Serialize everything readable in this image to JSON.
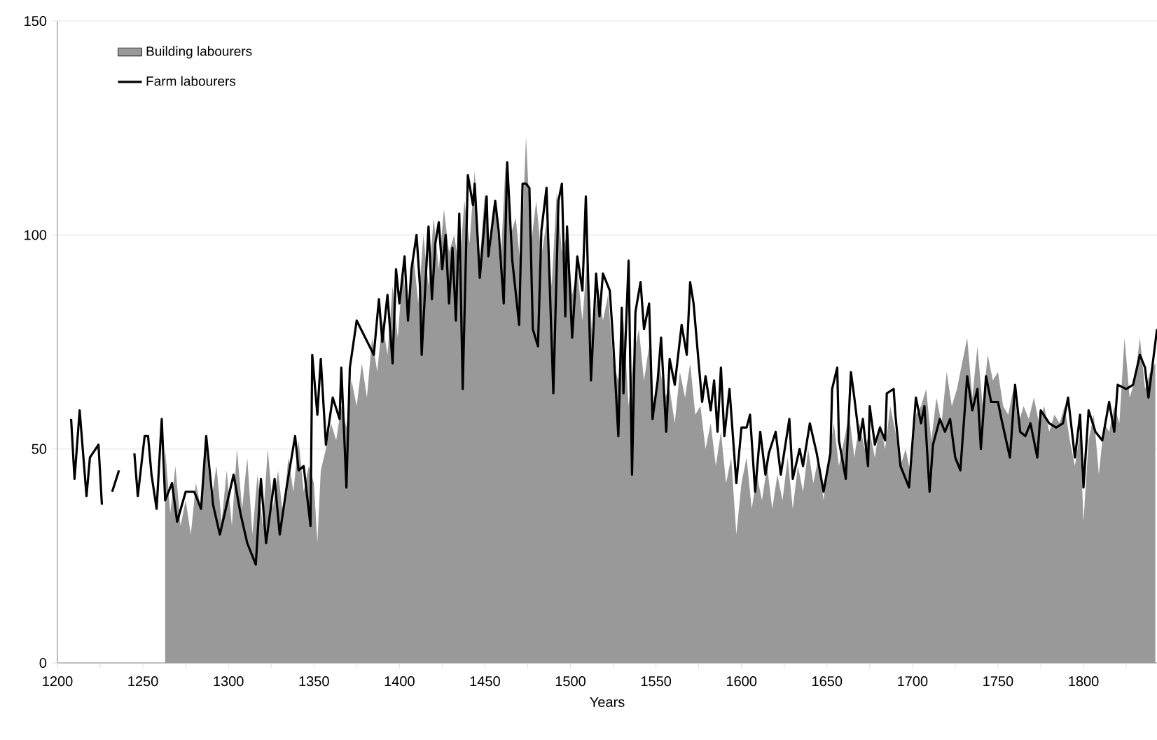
{
  "chart_data": {
    "type": "area",
    "xlabel": "Years",
    "xlim": [
      1200,
      1843
    ],
    "ylim": [
      0,
      150
    ],
    "xticks": [
      1200,
      {
        "value": 1225,
        "label": null
      },
      1250,
      {
        "value": 1275,
        "label": null
      },
      1300,
      {
        "value": 1325,
        "label": null
      },
      1350,
      {
        "value": 1375,
        "label": null
      },
      1400,
      {
        "value": 1425,
        "label": null
      },
      1450,
      {
        "value": 1475,
        "label": null
      },
      1500,
      {
        "value": 1525,
        "label": null
      },
      1550,
      {
        "value": 1575,
        "label": null
      },
      1600,
      {
        "value": 1625,
        "label": null
      },
      1650,
      {
        "value": 1675,
        "label": null
      },
      1700,
      {
        "value": 1725,
        "label": null
      },
      1750,
      {
        "value": 1775,
        "label": null
      },
      1800,
      {
        "value": 1825,
        "label": null
      }
    ],
    "yticks": [
      0,
      50,
      100,
      150
    ],
    "grid": "y",
    "legend": "top left",
    "series": [
      {
        "name": "Building labourers",
        "color": "#999999",
        "x": [
          1263,
          1266,
          1269,
          1272,
          1275,
          1278,
          1281,
          1284,
          1287,
          1290,
          1293,
          1296,
          1299,
          1302,
          1305,
          1308,
          1311,
          1314,
          1317,
          1320,
          1323,
          1326,
          1329,
          1332,
          1335,
          1338,
          1341,
          1344,
          1347,
          1350,
          1352,
          1354,
          1357,
          1360,
          1363,
          1366,
          1369,
          1372,
          1375,
          1378,
          1381,
          1384,
          1387,
          1390,
          1393,
          1396,
          1399,
          1402,
          1405,
          1408,
          1411,
          1414,
          1417,
          1420,
          1423,
          1426,
          1429,
          1432,
          1435,
          1438,
          1441,
          1444,
          1447,
          1450,
          1453,
          1456,
          1459,
          1462,
          1465,
          1468,
          1471,
          1474,
          1477,
          1480,
          1483,
          1486,
          1489,
          1492,
          1495,
          1498,
          1501,
          1504,
          1507,
          1510,
          1513,
          1516,
          1519,
          1522,
          1525,
          1528,
          1531,
          1534,
          1537,
          1540,
          1543,
          1546,
          1549,
          1552,
          1555,
          1558,
          1561,
          1564,
          1567,
          1570,
          1573,
          1576,
          1579,
          1582,
          1585,
          1588,
          1591,
          1594,
          1597,
          1600,
          1603,
          1606,
          1609,
          1612,
          1615,
          1618,
          1621,
          1624,
          1627,
          1630,
          1633,
          1636,
          1639,
          1642,
          1645,
          1648,
          1651,
          1654,
          1657,
          1660,
          1663,
          1666,
          1669,
          1672,
          1675,
          1678,
          1681,
          1684,
          1687,
          1690,
          1693,
          1696,
          1699,
          1702,
          1705,
          1708,
          1711,
          1714,
          1717,
          1720,
          1723,
          1726,
          1729,
          1732,
          1735,
          1738,
          1741,
          1744,
          1747,
          1750,
          1753,
          1756,
          1759,
          1762,
          1765,
          1768,
          1771,
          1774,
          1777,
          1780,
          1783,
          1786,
          1789,
          1792,
          1795,
          1798,
          1800,
          1803,
          1806,
          1809,
          1812,
          1815,
          1818,
          1821,
          1824,
          1827,
          1830,
          1833,
          1836,
          1839,
          1842
        ],
        "values": [
          50,
          35,
          46,
          32,
          38,
          30,
          42,
          36,
          50,
          38,
          46,
          33,
          45,
          32,
          50,
          36,
          48,
          30,
          44,
          32,
          50,
          36,
          45,
          34,
          48,
          40,
          52,
          40,
          46,
          42,
          28,
          45,
          50,
          56,
          52,
          60,
          55,
          66,
          60,
          70,
          62,
          76,
          68,
          80,
          72,
          88,
          76,
          92,
          80,
          96,
          84,
          100,
          88,
          104,
          92,
          106,
          96,
          100,
          92,
          108,
          98,
          115,
          94,
          110,
          96,
          108,
          92,
          116,
          100,
          104,
          92,
          123,
          98,
          108,
          95,
          103,
          88,
          110,
          96,
          100,
          86,
          92,
          80,
          96,
          74,
          88,
          80,
          86,
          70,
          66,
          80,
          60,
          72,
          78,
          66,
          74,
          58,
          70,
          62,
          64,
          56,
          68,
          62,
          70,
          58,
          60,
          50,
          56,
          46,
          54,
          42,
          48,
          30,
          42,
          48,
          36,
          44,
          38,
          46,
          36,
          44,
          38,
          48,
          36,
          46,
          40,
          50,
          42,
          48,
          38,
          48,
          56,
          46,
          52,
          58,
          48,
          56,
          50,
          54,
          48,
          56,
          50,
          60,
          54,
          46,
          50,
          44,
          58,
          60,
          64,
          52,
          62,
          56,
          68,
          60,
          64,
          70,
          76,
          62,
          74,
          60,
          72,
          66,
          68,
          60,
          58,
          64,
          56,
          60,
          57,
          62,
          56,
          60,
          54,
          58,
          56,
          60,
          52,
          46,
          54,
          33,
          52,
          58,
          44,
          56,
          54,
          60,
          56,
          76,
          62,
          66,
          76,
          64,
          68,
          70
        ]
      },
      {
        "name": "Farm labourers",
        "type": "line",
        "color": "#000000",
        "x": [
          1208,
          1210,
          1213,
          1217,
          1219,
          1224,
          1226,
          1228,
          1232,
          1236,
          1238,
          1245,
          1247,
          1251,
          1253,
          1255,
          1258,
          1261,
          1263,
          1267,
          1270,
          1275,
          1280,
          1284,
          1287,
          1291,
          1295,
          1299,
          1303,
          1307,
          1311,
          1316,
          1319,
          1322,
          1327,
          1330,
          1334,
          1339,
          1341,
          1344,
          1348,
          1349,
          1352,
          1354,
          1357,
          1361,
          1365,
          1366,
          1369,
          1371,
          1375,
          1385,
          1388,
          1390,
          1393,
          1396,
          1398,
          1400,
          1403,
          1405,
          1407,
          1410,
          1412,
          1413,
          1417,
          1419,
          1421,
          1423,
          1425,
          1427,
          1429,
          1431,
          1433,
          1435,
          1437,
          1440,
          1443,
          1444,
          1447,
          1451,
          1452,
          1456,
          1458,
          1461,
          1463,
          1466,
          1470,
          1472,
          1474,
          1476,
          1478,
          1481,
          1483,
          1486,
          1490,
          1493,
          1495,
          1497,
          1498,
          1501,
          1504,
          1507,
          1509,
          1512,
          1515,
          1517,
          1519,
          1523,
          1525,
          1528,
          1530,
          1531,
          1534,
          1536,
          1538,
          1541,
          1543,
          1546,
          1548,
          1551,
          1553,
          1556,
          1558,
          1561,
          1565,
          1568,
          1570,
          1572,
          1575,
          1577,
          1579,
          1582,
          1584,
          1586,
          1588,
          1590,
          1593,
          1597,
          1600,
          1603,
          1605,
          1608,
          1611,
          1614,
          1616,
          1620,
          1623,
          1628,
          1630,
          1634,
          1636,
          1640,
          1644,
          1648,
          1652,
          1653,
          1656,
          1657,
          1661,
          1664,
          1666,
          1669,
          1671,
          1674,
          1675,
          1678,
          1681,
          1684,
          1685,
          1689,
          1690,
          1693,
          1698,
          1702,
          1705,
          1707,
          1710,
          1712,
          1716,
          1719,
          1722,
          1725,
          1728,
          1732,
          1735,
          1738,
          1740,
          1743,
          1746,
          1750,
          1752,
          1757,
          1760,
          1763,
          1766,
          1769,
          1773,
          1775,
          1780,
          1784,
          1788,
          1791,
          1795,
          1798,
          1800,
          1803,
          1807,
          1811,
          1815,
          1818,
          1820,
          1825,
          1829,
          1833,
          1836,
          1838,
          1843
        ],
        "values": [
          57,
          43,
          59,
          39,
          48,
          51,
          37,
          null,
          40,
          45,
          null,
          49,
          39,
          53,
          53,
          44,
          36,
          57,
          38,
          42,
          33,
          40,
          40,
          36,
          53,
          37,
          30,
          37,
          44,
          35,
          28,
          23,
          43,
          28,
          43,
          30,
          41,
          53,
          45,
          46,
          32,
          72,
          58,
          71,
          51,
          62,
          57,
          69,
          41,
          69,
          80,
          72,
          85,
          75,
          86,
          70,
          92,
          84,
          95,
          80,
          92,
          100,
          88,
          72,
          102,
          85,
          98,
          103,
          92,
          100,
          84,
          97,
          80,
          105,
          64,
          114,
          107,
          112,
          90,
          109,
          95,
          108,
          101,
          84,
          117,
          94,
          79,
          112,
          112,
          111,
          78,
          74,
          101,
          111,
          63,
          108,
          112,
          81,
          102,
          76,
          95,
          87,
          109,
          66,
          91,
          81,
          91,
          87,
          75,
          53,
          83,
          63,
          94,
          44,
          82,
          89,
          78,
          84,
          57,
          66,
          76,
          54,
          71,
          65,
          79,
          72,
          89,
          84,
          70,
          61,
          67,
          59,
          66,
          54,
          69,
          53,
          64,
          42,
          55,
          55,
          58,
          40,
          54,
          44,
          49,
          54,
          44,
          57,
          43,
          50,
          46,
          56,
          49,
          40,
          49,
          64,
          69,
          52,
          43,
          68,
          62,
          52,
          57,
          46,
          60,
          51,
          55,
          52,
          63,
          64,
          58,
          46,
          41,
          62,
          56,
          60,
          40,
          51,
          57,
          54,
          57,
          48,
          45,
          67,
          59,
          64,
          50,
          67,
          61,
          61,
          57,
          48,
          65,
          54,
          53,
          56,
          48,
          59,
          56,
          55,
          56,
          62,
          48,
          58,
          41,
          59,
          54,
          52,
          61,
          54,
          65,
          64,
          65,
          72,
          69,
          62,
          78
        ]
      }
    ]
  }
}
